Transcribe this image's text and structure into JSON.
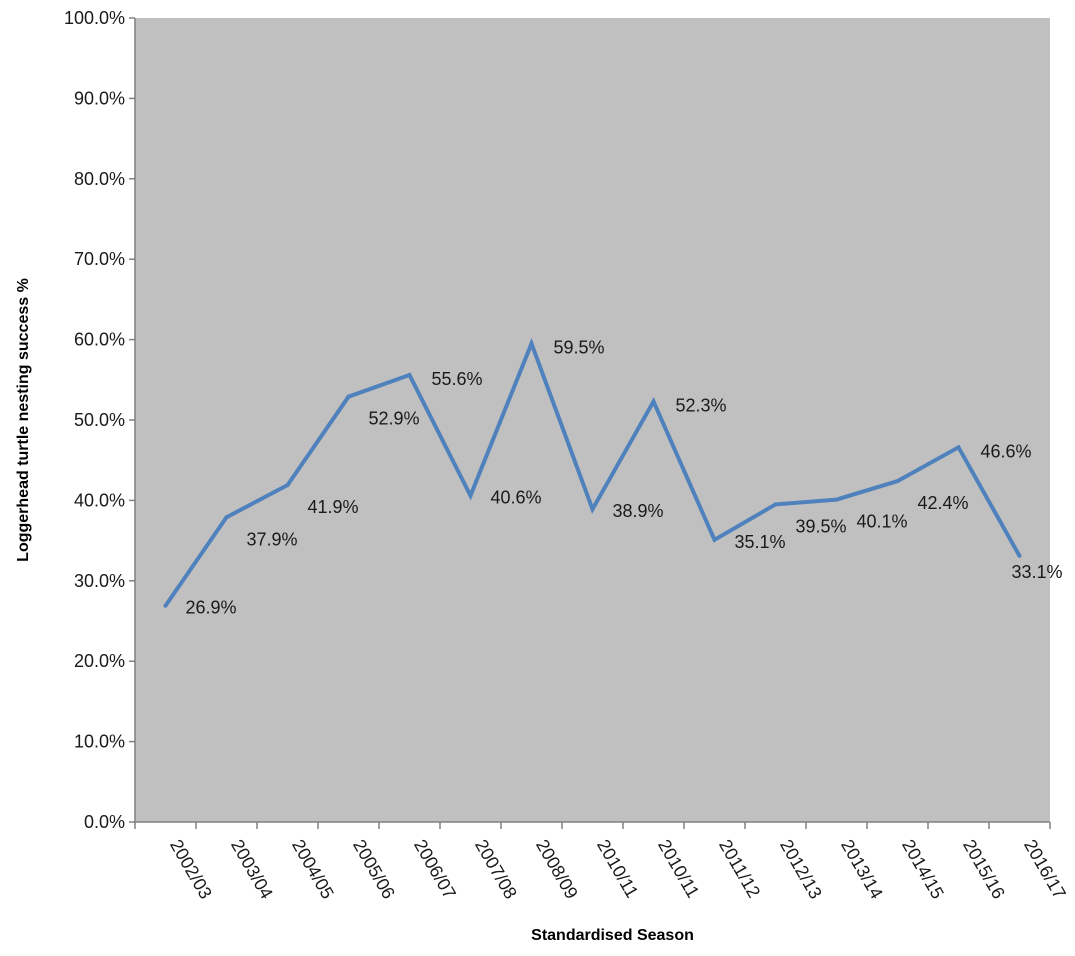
{
  "chart_data": {
    "type": "line",
    "categories": [
      "2002/03",
      "2003/04",
      "2004/05",
      "2005/06",
      "2006/07",
      "2007/08",
      "2008/09",
      "2010/11",
      "2010/11",
      "2011/12",
      "2012/13",
      "2013/14",
      "2014/15",
      "2015/16",
      "2016/17"
    ],
    "series": [
      {
        "values": [
          26.9,
          37.9,
          41.9,
          52.9,
          55.6,
          40.6,
          59.5,
          38.9,
          52.3,
          35.1,
          39.5,
          40.1,
          42.4,
          46.6,
          33.1
        ],
        "labels": [
          "26.9%",
          "37.9%",
          "41.9%",
          "52.9%",
          "55.6%",
          "40.6%",
          "59.5%",
          "38.9%",
          "52.3%",
          "35.1%",
          "39.5%",
          "40.1%",
          "42.4%",
          "46.6%",
          "33.1%"
        ]
      }
    ],
    "xlabel": "Standardised Season",
    "ylabel": "Loggerhead turtle nesting success %",
    "ylim": [
      0,
      100
    ],
    "yticks": [
      "0.0%",
      "10.0%",
      "20.0%",
      "30.0%",
      "40.0%",
      "50.0%",
      "60.0%",
      "70.0%",
      "80.0%",
      "90.0%",
      "100.0%"
    ],
    "grid": false,
    "legend": "none",
    "colors": {
      "plot_background": "#c0c0c0",
      "line": "#4f81bd",
      "axis": "#808080"
    }
  }
}
